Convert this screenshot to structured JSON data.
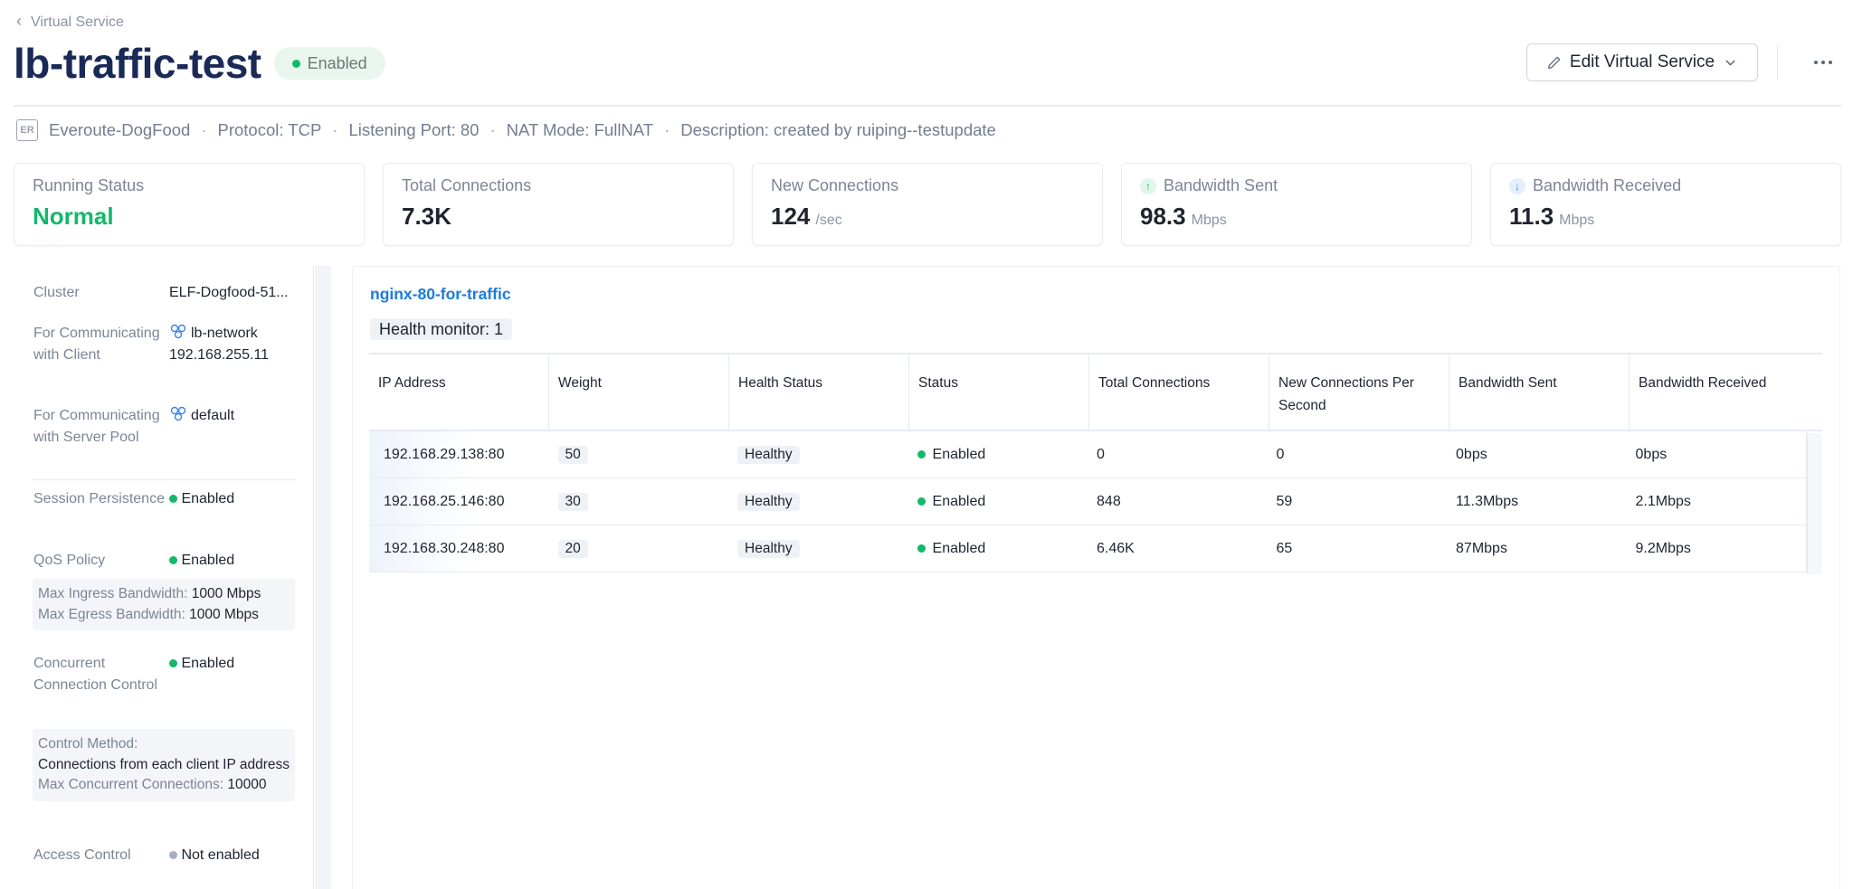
{
  "breadcrumb": {
    "label": "Virtual Service"
  },
  "header": {
    "title": "lb-traffic-test",
    "status_label": "Enabled",
    "edit_button_label": "Edit Virtual Service"
  },
  "meta": {
    "cluster_badge": "ER",
    "cluster_name": "Everoute-DogFood",
    "protocol": "Protocol: TCP",
    "listening_port": "Listening Port: 80",
    "nat_mode": "NAT Mode: FullNAT",
    "description": "Description: created by ruiping--testupdate"
  },
  "stats": [
    {
      "label": "Running Status",
      "value": "Normal",
      "unit": ""
    },
    {
      "label": "Total Connections",
      "value": "7.3K",
      "unit": ""
    },
    {
      "label": "New Connections",
      "value": "124",
      "unit": "/sec"
    },
    {
      "label": "Bandwidth Sent",
      "value": "98.3",
      "unit": "Mbps"
    },
    {
      "label": "Bandwidth Received",
      "value": "11.3",
      "unit": "Mbps"
    }
  ],
  "details": {
    "cluster_label": "Cluster",
    "cluster_value": "ELF-Dogfood-51...",
    "client_label": "For Communicating with Client",
    "client_network": "lb-network",
    "client_ip": "192.168.255.11",
    "server_label": "For Communicating with Server Pool",
    "server_network": "default",
    "session_label": "Session Persistence",
    "session_value": "Enabled",
    "qos_label": "QoS Policy",
    "qos_value": "Enabled",
    "ingress_key": "Max Ingress Bandwidth:",
    "ingress_value": "1000 Mbps",
    "egress_key": "Max Egress Bandwidth:",
    "egress_value": "1000 Mbps",
    "concurrent_label": "Concurrent Connection Control",
    "concurrent_value": "Enabled",
    "control_method_key": "Control Method:",
    "control_method_value": "Connections from each client IP address",
    "max_concurrent_key": "Max Concurrent Connections:",
    "max_concurrent_value": "10000",
    "access_label": "Access Control",
    "access_value": "Not enabled"
  },
  "pool": {
    "name": "nginx-80-for-traffic",
    "health_monitor": "Health monitor: 1",
    "columns": [
      "IP Address",
      "Weight",
      "Health Status",
      "Status",
      "Total Connections",
      "New Connections Per Second",
      "Bandwidth Sent",
      "Bandwidth Received"
    ],
    "rows": [
      {
        "ip": "192.168.29.138:80",
        "weight": "50",
        "health": "Healthy",
        "status": "Enabled",
        "total": "0",
        "new": "0",
        "sent": "0bps",
        "received": "0bps"
      },
      {
        "ip": "192.168.25.146:80",
        "weight": "30",
        "health": "Healthy",
        "status": "Enabled",
        "total": "848",
        "new": "59",
        "sent": "11.3Mbps",
        "received": "2.1Mbps"
      },
      {
        "ip": "192.168.30.248:80",
        "weight": "20",
        "health": "Healthy",
        "status": "Enabled",
        "total": "6.46K",
        "new": "65",
        "sent": "87Mbps",
        "received": "9.2Mbps"
      }
    ]
  },
  "colors": {
    "title": "#1a2a57",
    "success": "#14b86a",
    "link": "#1a7be0",
    "muted": "#7c8596"
  },
  "icons": {
    "back": "chevron-left-icon",
    "edit": "pencil-icon",
    "dropdown": "chevron-down-icon",
    "more": "more-horizontal-icon",
    "network": "network-icon",
    "sent": "arrow-up-icon",
    "received": "arrow-down-icon"
  }
}
